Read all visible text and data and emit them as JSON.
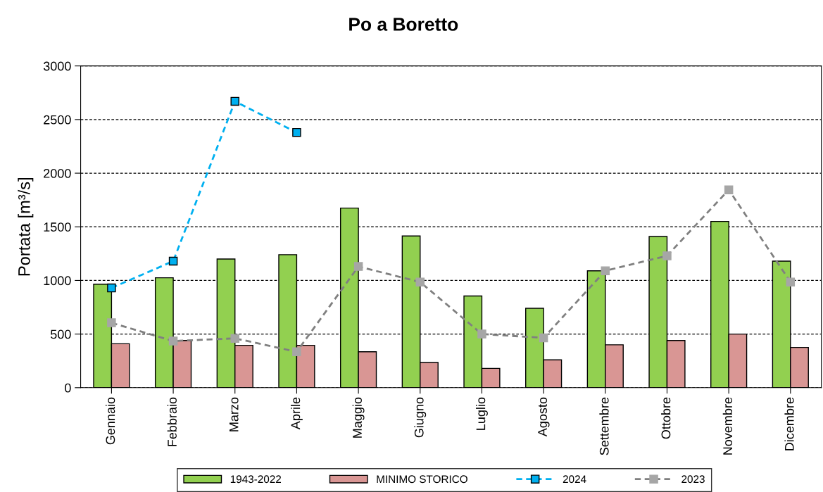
{
  "chart_data": {
    "type": "bar",
    "title": "Po a Boretto",
    "ylabel": "Portata [m³/s]",
    "categories": [
      "Gennaio",
      "Febbraio",
      "Marzo",
      "Aprile",
      "Maggio",
      "Giugno",
      "Luglio",
      "Agosto",
      "Settembre",
      "Ottobre",
      "Novembre",
      "Dicembre"
    ],
    "series": [
      {
        "name": "1943-2022",
        "color": "#92d050",
        "values": [
          965,
          1025,
          1200,
          1240,
          1675,
          1415,
          855,
          740,
          1090,
          1410,
          1550,
          1180
        ]
      },
      {
        "name": "MINIMO STORICO",
        "color": "#d99694",
        "values": [
          410,
          440,
          395,
          395,
          335,
          235,
          180,
          260,
          400,
          440,
          500,
          375
        ]
      },
      {
        "name": "2024",
        "type": "line",
        "color": "#00b0f0",
        "marker": "square",
        "line_style": "dashed",
        "values": [
          930,
          1180,
          2670,
          2380,
          null,
          null,
          null,
          null,
          null,
          null,
          null,
          null
        ]
      },
      {
        "name": "2023",
        "type": "line",
        "color": "#a6a6a6",
        "marker": "square",
        "line_style": "dashed",
        "values": [
          605,
          435,
          460,
          335,
          1130,
          985,
          500,
          465,
          1090,
          1230,
          1845,
          985
        ]
      }
    ],
    "ylim": [
      0,
      3000
    ],
    "yticks": [
      0,
      500,
      1000,
      1500,
      2000,
      2500,
      3000
    ],
    "grid": "y",
    "legend": "bottom"
  }
}
